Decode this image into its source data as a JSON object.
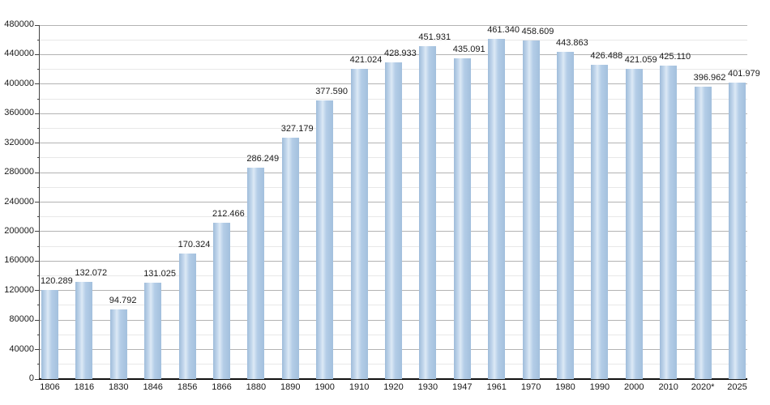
{
  "chart": {
    "background": "#ffffff"
  },
  "chart_data": {
    "type": "bar",
    "title": "",
    "xlabel": "",
    "ylabel": "",
    "categories": [
      "1806",
      "1816",
      "1830",
      "1846",
      "1856",
      "1866",
      "1880",
      "1890",
      "1900",
      "1910",
      "1920",
      "1930",
      "1947",
      "1961",
      "1970",
      "1980",
      "1990",
      "2000",
      "2010",
      "2020*",
      "2025"
    ],
    "values": [
      120289,
      132072,
      94792,
      131025,
      170324,
      212466,
      286249,
      327179,
      377590,
      421024,
      428933,
      451931,
      435091,
      461340,
      458609,
      443863,
      426488,
      421059,
      425110,
      396962,
      401979
    ],
    "bar_labels": [
      "120.289",
      "132.072",
      "94.792",
      "131.025",
      "170.324",
      "212.466",
      "286.249",
      "327.179",
      "377.590",
      "421.024",
      "428.933",
      "451.931",
      "435.091",
      "461.340",
      "458.609",
      "443.863",
      "426.488",
      "421.059",
      "425.110",
      "396.962",
      "401.979"
    ],
    "ylim": [
      0,
      480000
    ],
    "y_major_step": 40000,
    "y_minor_step": 20000,
    "y_tick_labels": [
      "0",
      "40000",
      "80000",
      "120000",
      "160000",
      "200000",
      "240000",
      "280000",
      "320000",
      "360000",
      "400000",
      "440000",
      "480000"
    ],
    "grid": true,
    "legend_position": "none",
    "colors": {
      "bar_edge": "#9fbcda",
      "bar_bright": "#dce9f6",
      "bar_mid": "#b4cde7",
      "bar_right": "#a3c0dd",
      "grid_major": "#b3b3b3",
      "grid_minor": "#e8e8e8",
      "axis": "#444444",
      "baseline": "#111111",
      "text": "#1a1a1a"
    }
  }
}
